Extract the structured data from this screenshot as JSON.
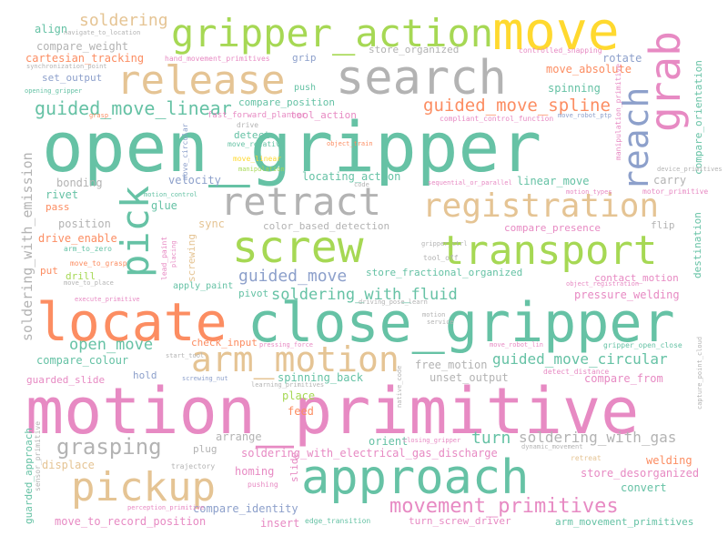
{
  "colors": {
    "green": "#66c2a5",
    "orange": "#fc8d62",
    "blue": "#8da0cb",
    "pink": "#e78ac3",
    "lime": "#a6d854",
    "yellow": "#ffd92f",
    "tan": "#e5c494",
    "gray": "#b3b3b3"
  },
  "words": {
    "open_gripper": "open_gripper",
    "motion_primitive": "motion_primitive",
    "close_gripper": "close_gripper",
    "screw": "screw",
    "transport": "transport",
    "locate": "locate",
    "approach": "approach",
    "search": "search",
    "move": "move",
    "gripper_action": "gripper_action",
    "release": "release",
    "grab": "grab",
    "reach": "reach",
    "pick": "pick",
    "retract": "retract",
    "registration": "registration",
    "arm_motion": "arm_motion",
    "pickup": "pickup",
    "grasping": "grasping",
    "movement_primitives": "movement_primitives",
    "soldering": "soldering",
    "guided_move_linear": "guided_move_linear",
    "guided_move_spline": "guided_move_spline",
    "guided_move": "guided_move",
    "open_move": "open_move",
    "soldering_with_fluid": "soldering_with_fluid",
    "guided_move_circular": "guided_move_circular",
    "soldering_with_gas": "soldering_with_gas",
    "soldering_with_emission": "soldering_with_emission",
    "turn": "turn",
    "soldering_with_electrical_gas_discharge": "soldering_with_electrical_gas_discharge",
    "align": "align",
    "compare_weight": "compare_weight",
    "cartesian_tracking": "cartesian_tracking",
    "set_output": "set_output",
    "push": "push",
    "grip": "grip",
    "store_organized": "store_organized",
    "rotate": "rotate",
    "move_absolute": "move_absolute",
    "spinning": "spinning",
    "compare_position": "compare_position",
    "tool_action": "tool_action",
    "compare_orientation": "compare_orientation",
    "detect": "detect",
    "velocity": "velocity",
    "locating_action": "locating_action",
    "linear_move": "linear_move",
    "carry": "carry",
    "bonding": "bonding",
    "rivet": "rivet",
    "glue": "glue",
    "pass": "pass",
    "sync": "sync",
    "color_based_detection": "color_based_detection",
    "compare_presence": "compare_presence",
    "flip": "flip",
    "position": "position",
    "drive_enable": "drive_enable",
    "put": "put",
    "drill": "drill",
    "store_fractional_organized": "store_fractional_organized",
    "destination": "destination",
    "contact_motion": "contact_motion",
    "pivot": "pivot",
    "apply_paint": "apply_paint",
    "pressure_welding": "pressure_welding",
    "compare_colour": "compare_colour",
    "check_input": "check_input",
    "free_motion": "free_motion",
    "unset_output": "unset_output",
    "hold": "hold",
    "spinning_back": "spinning_back",
    "compare_from": "compare_from",
    "place": "place",
    "feed": "feed",
    "guarded_slide": "guarded_slide",
    "arrange": "arrange",
    "orient": "orient",
    "plug": "plug",
    "welding": "welding",
    "displace": "displace",
    "homing": "homing",
    "slide": "slide",
    "store_desorganized": "store_desorganized",
    "convert": "convert",
    "compare_identity": "compare_identity",
    "move_to_record_position": "move_to_record_position",
    "insert": "insert",
    "edge_transition": "edge_transition",
    "turn_screw_driver": "turn_screw_driver",
    "arm_movement_primitives": "arm_movement_primitives",
    "screwing": "screwing",
    "fast_forward_planner": "fast_forward_planner",
    "hand_movement_primitives": "hand_movement_primitives",
    "compliant_control_function": "compliant_control_function",
    "controlled_snapping": "controlled_snapping",
    "navigate_to_location": "navigate_to_location",
    "synchronization_point": "synchronization_point",
    "opening_gripper": "opening_gripper",
    "grasp": "grasp",
    "move_robot_ptp": "move_robot_ptp",
    "manipulation_primitive": "manipulation_primitive",
    "move_circular": "move_circular",
    "drive": "drive",
    "move_relative": "move_relative",
    "object_train": "object_train",
    "move_linear": "move_linear",
    "manipulation": "manipulation",
    "motion_control": "motion_control",
    "code": "code",
    "sequential_or_parallel": "sequential_or_parallel",
    "motion_types": "motion_types",
    "motor_primitive": "motor_primitive",
    "device_primitives": "device_primitives",
    "arm_to_zero": "arm_to_zero",
    "move_to_grasp": "move_to_grasp",
    "move_to_place": "move_to_place",
    "lead_paint": "lead_paint",
    "placing": "placing",
    "gripper_ctrl": "gripper_ctrl",
    "tool_off": "tool_off",
    "object_registration": "object_registration",
    "execute_primitive": "execute_primitive",
    "driving_pose_learn": "driving_pose_learn",
    "motion": "motion",
    "service": "service",
    "start_tool": "start_tool",
    "pressing_force": "pressing_force",
    "move_robot_lin": "move_robot_lin",
    "gripper_open_close": "gripper_open_close",
    "capture_point_cloud": "capture_point_cloud",
    "screwing_nut": "screwing_nut",
    "learning_primitives": "learning_primitives",
    "detect_distance": "detect_distance",
    "native_code": "native_code",
    "closing_gripper": "closing_gripper",
    "dynamic_movement": "dynamic_movement",
    "retreat": "retreat",
    "trajectory": "trajectory",
    "guarded_approach": "guarded_approach",
    "pushing": "pushing",
    "perception_primitive": "perception_primitive",
    "sensor_primitive": "sensor_primitive"
  }
}
